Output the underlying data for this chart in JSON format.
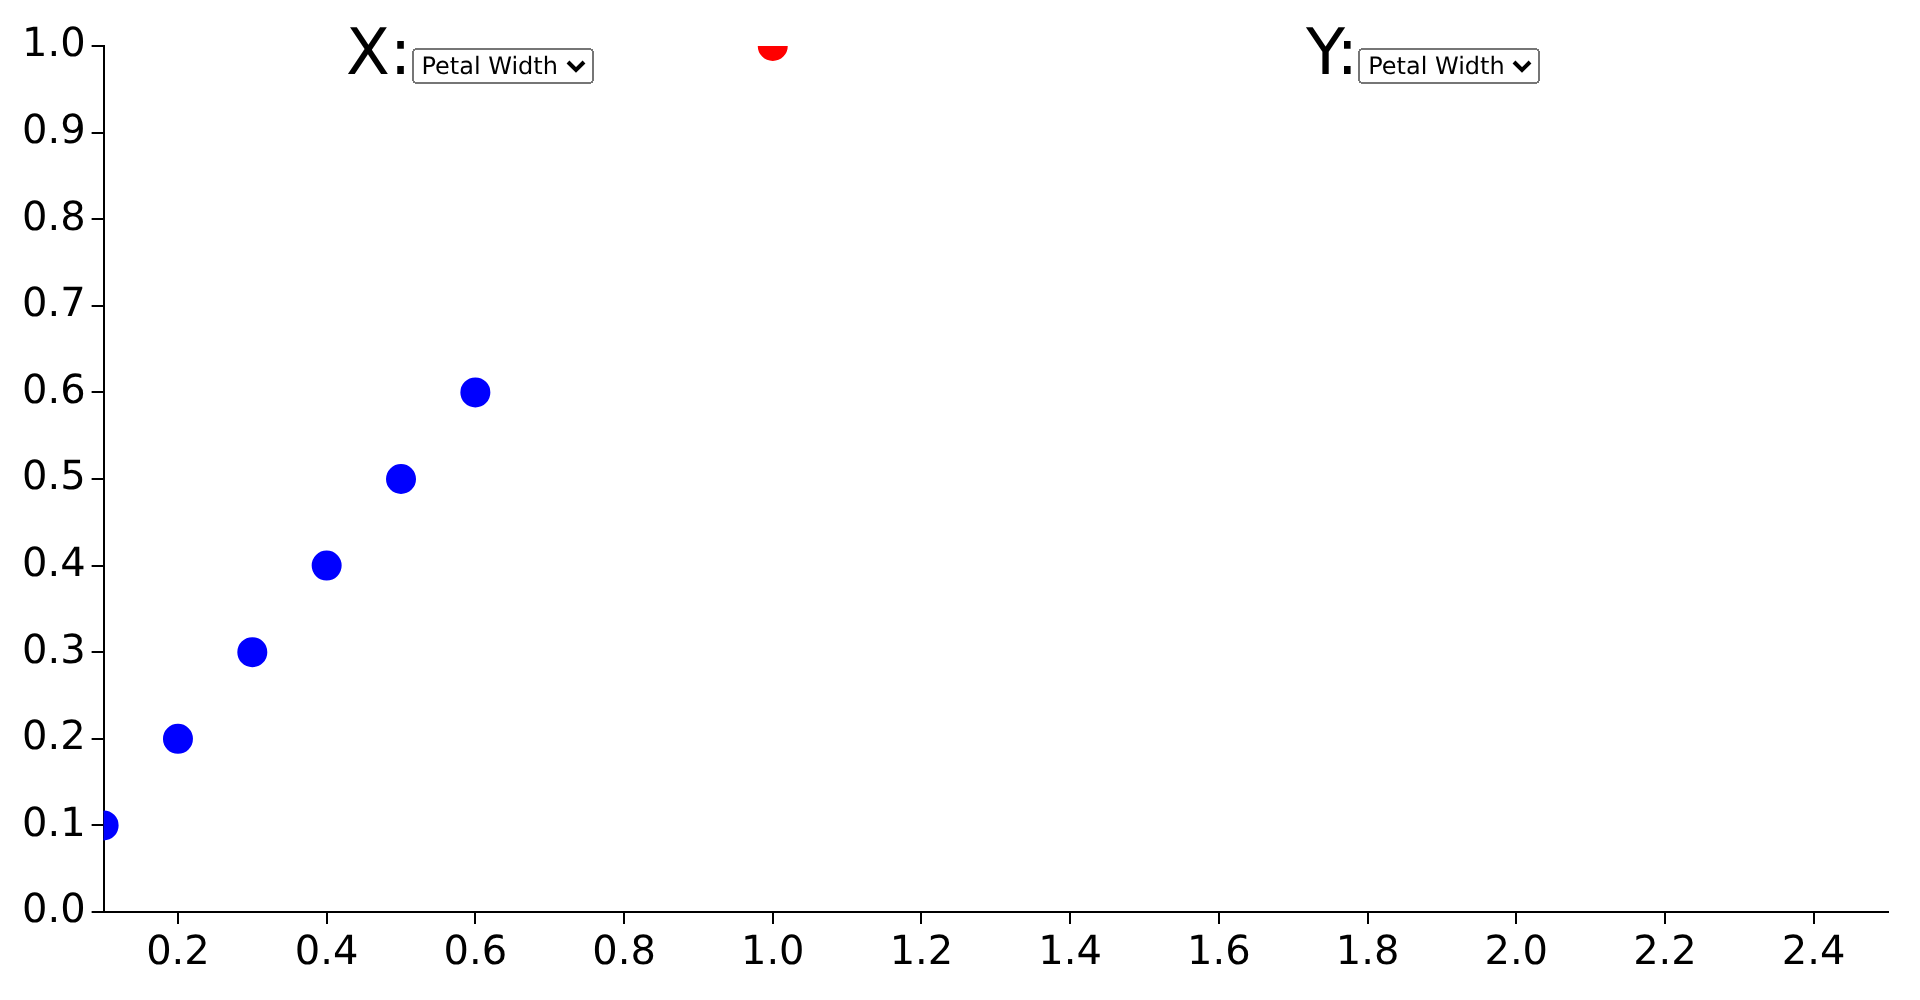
{
  "chart_data": {
    "type": "scatter",
    "series": [
      {
        "color": "#0000ff",
        "x": [
          0.1,
          0.2,
          0.3,
          0.4,
          0.5,
          0.6
        ],
        "values": [
          0.1,
          0.2,
          0.3,
          0.4,
          0.5,
          0.6
        ]
      },
      {
        "color": "#ff0000",
        "x": [
          1.0
        ],
        "values": [
          1.0
        ]
      }
    ],
    "xlim": [
      0.1,
      2.5
    ],
    "ylim": [
      0,
      1
    ],
    "xticks": [
      0.2,
      0.4,
      0.6,
      0.8,
      {
        "value": 1,
        "label": "1.0"
      },
      1.2,
      1.4,
      1.6,
      1.8,
      {
        "value": 2,
        "label": "2.0"
      },
      2.2,
      2.4
    ],
    "yticks": [
      {
        "value": 0,
        "label": "0.0"
      },
      0.1,
      0.2,
      0.3,
      0.4,
      0.5,
      0.6,
      0.7,
      0.8,
      0.9,
      {
        "value": 1,
        "label": "1.0"
      }
    ],
    "grid": false,
    "marker": "circle",
    "annotations": [
      "X:",
      "Petal Width",
      "Y:",
      "Petal Width"
    ]
  }
}
